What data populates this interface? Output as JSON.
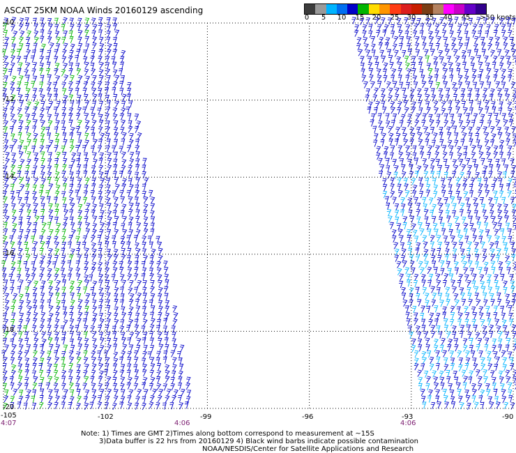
{
  "title": "ASCAT 25KM NOAA Winds 20160129 ascending",
  "colorbar": {
    "unit_label": ">50 knots",
    "labels": [
      "0",
      "5",
      "10",
      "15",
      "20",
      "25",
      "30",
      "35",
      "40",
      "45"
    ],
    "colors": [
      "#3c3c3c",
      "#9a9a9a",
      "#00b4ff",
      "#006ef0",
      "#0000c8",
      "#00b400",
      "#ffdc00",
      "#ff9600",
      "#ff3c14",
      "#dc1e1e",
      "#c81e00",
      "#7a3d14",
      "#b48260",
      "#ff00ff",
      "#c800c8",
      "#6400c8",
      "#32008c"
    ]
  },
  "map": {
    "lat_labels": [
      "-10",
      "-12",
      "-14",
      "-16",
      "-18",
      "-20"
    ],
    "lon_labels": [
      "-105",
      "-102",
      "-99",
      "-96",
      "-93",
      "-90"
    ],
    "lat_values": [
      -10,
      -12,
      -14,
      -16,
      -18,
      -20
    ],
    "lon_values": [
      -105,
      -102,
      -99,
      -96,
      -93,
      -90
    ],
    "times": [
      "4:07",
      "4:06",
      "4:06"
    ],
    "barb_colors": {
      "low": "#00b4ff",
      "mid": "#0000c8",
      "high": "#00b400"
    }
  },
  "notes": [
    "Note: 1) Times are GMT 2)Times along bottom correspond to measurement at ~15S",
    "3)Data buffer is 22 hrs from 20160129 4) Black wind barbs indicate possible contamination",
    "NOAA/NESDIS/Center for Satellite Applications and Research"
  ]
}
